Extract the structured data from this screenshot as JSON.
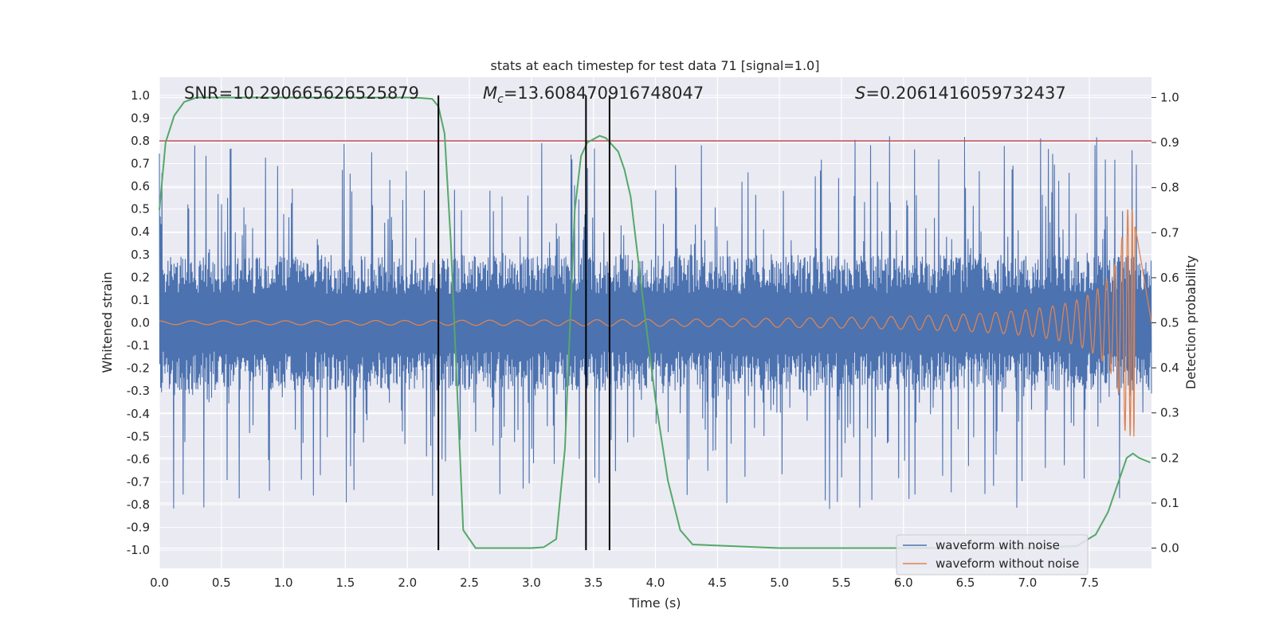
{
  "chart_data": {
    "type": "line",
    "title": "stats at each timestep for test data 71 [signal=1.0]",
    "xlabel": "Time (s)",
    "ylabel": "Whitened strain",
    "y2label": "Detection probability",
    "xlim": [
      0.0,
      8.0
    ],
    "ylim": [
      -1.08,
      1.08
    ],
    "y2lim": [
      -0.045,
      1.045
    ],
    "xticks": [
      "0.0",
      "0.5",
      "1.0",
      "1.5",
      "2.0",
      "2.5",
      "3.0",
      "3.5",
      "4.0",
      "4.5",
      "5.0",
      "5.5",
      "6.0",
      "6.5",
      "7.0",
      "7.5"
    ],
    "yticks": [
      "1.0",
      "0.9",
      "0.8",
      "0.7",
      "0.6",
      "0.5",
      "0.4",
      "0.3",
      "0.2",
      "0.1",
      "0.0",
      "-0.1",
      "-0.2",
      "-0.3",
      "-0.4",
      "-0.5",
      "-0.6",
      "-0.7",
      "-0.8",
      "-0.9",
      "-1.0"
    ],
    "y2ticks": [
      "1.0",
      "0.9",
      "0.8",
      "0.7",
      "0.6",
      "0.5",
      "0.4",
      "0.3",
      "0.2",
      "0.1",
      "0.0"
    ],
    "grid": true,
    "legend_position": "lower-right",
    "annotations": {
      "snr": "SNR=10.290665626525879",
      "mc_symbol": "M",
      "mc_sub": "c",
      "mc_value": "=13.608470916748047",
      "s_symbol": "S",
      "s_value": "=0.2061416059732437"
    },
    "threshold_line": {
      "y": 0.8,
      "color": "#c44e52"
    },
    "vertical_lines_x": [
      2.25,
      3.44,
      3.63
    ],
    "series": [
      {
        "name": "waveform with noise",
        "color": "#4c72b0",
        "envelope_core": 0.23,
        "envelope_spike": 0.82,
        "seed": 71
      },
      {
        "name": "waveform without noise",
        "color": "#dd8452",
        "amplitude_start": 0.008,
        "amplitude_peak": 0.5,
        "merger_time": 7.87,
        "chirp_f0": 5.2
      },
      {
        "color": "#55a868",
        "axis": "right",
        "x": [
          0.0,
          0.05,
          0.12,
          0.2,
          0.3,
          0.5,
          1.0,
          1.5,
          2.0,
          2.1,
          2.2,
          2.25,
          2.3,
          2.35,
          2.45,
          2.55,
          3.0,
          3.1,
          3.2,
          3.27,
          3.35,
          3.4,
          3.45,
          3.55,
          3.6,
          3.7,
          3.75,
          3.8,
          3.9,
          4.0,
          4.1,
          4.2,
          4.3,
          5.0,
          6.0,
          7.0,
          7.4,
          7.55,
          7.65,
          7.75,
          7.8,
          7.85,
          7.9,
          7.99
        ],
        "y": [
          0.75,
          0.9,
          0.96,
          0.99,
          1.0,
          1.0,
          1.0,
          1.0,
          1.0,
          0.999,
          0.997,
          0.98,
          0.92,
          0.68,
          0.04,
          0.0,
          0.0,
          0.002,
          0.02,
          0.22,
          0.75,
          0.87,
          0.9,
          0.915,
          0.91,
          0.88,
          0.84,
          0.78,
          0.55,
          0.33,
          0.15,
          0.04,
          0.008,
          0.0,
          0.0,
          0.0,
          0.005,
          0.03,
          0.08,
          0.16,
          0.2,
          0.21,
          0.2,
          0.19
        ]
      }
    ]
  }
}
